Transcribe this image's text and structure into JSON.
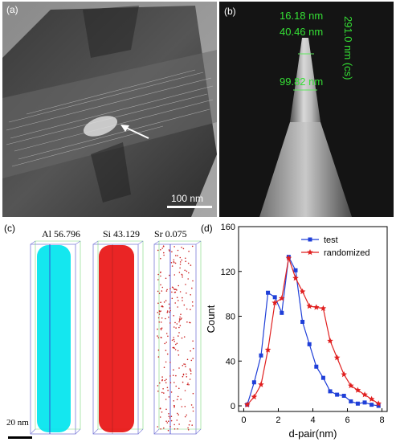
{
  "panel_a": {
    "label": "(a)",
    "scale_bar": "100 nm"
  },
  "panel_b": {
    "label": "(b)",
    "dim_1": "16.18 nm",
    "dim_2": "40.46 nm",
    "dim_3": "99.82 nm",
    "dim_vertical": "291.0 nm (cs)",
    "annotation_color": "#2ecc2e"
  },
  "panel_c": {
    "label": "(c)",
    "elements": [
      {
        "label": "Al 56.796",
        "color": "#00e5ee"
      },
      {
        "label": "Si 43.129",
        "color": "#ee1111"
      },
      {
        "label": "Sr 0.075",
        "color": "#cc2222"
      }
    ],
    "scale_bar": "20 nm"
  },
  "panel_d": {
    "label": "(d)"
  },
  "chart_data": {
    "type": "line",
    "xlabel": "d-pair(nm)",
    "ylabel": "Count",
    "xlim": [
      -0.3,
      8.3
    ],
    "ylim": [
      -5,
      160
    ],
    "xticks": [
      0,
      2,
      4,
      6,
      8
    ],
    "yticks": [
      0,
      40,
      80,
      120,
      160
    ],
    "legend_position": "top-right",
    "series": [
      {
        "name": "test",
        "color": "#1f3fd8",
        "marker": "square",
        "x": [
          0.2,
          0.6,
          1.0,
          1.4,
          1.8,
          2.2,
          2.6,
          3.0,
          3.4,
          3.8,
          4.2,
          4.6,
          5.0,
          5.4,
          5.8,
          6.2,
          6.6,
          7.0,
          7.4,
          7.8
        ],
        "y": [
          1,
          21,
          45,
          101,
          97,
          83,
          133,
          121,
          75,
          55,
          35,
          25,
          13,
          10,
          9,
          4,
          2,
          3,
          1,
          0
        ]
      },
      {
        "name": "randomized",
        "color": "#e01f1f",
        "marker": "star",
        "x": [
          0.2,
          0.6,
          1.0,
          1.4,
          1.8,
          2.2,
          2.6,
          3.0,
          3.4,
          3.8,
          4.2,
          4.6,
          5.0,
          5.4,
          5.8,
          6.2,
          6.6,
          7.0,
          7.4,
          7.8
        ],
        "y": [
          1,
          8,
          19,
          50,
          92,
          96,
          132,
          114,
          102,
          89,
          88,
          87,
          58,
          43,
          28,
          18,
          14,
          10,
          6,
          2
        ]
      }
    ]
  }
}
